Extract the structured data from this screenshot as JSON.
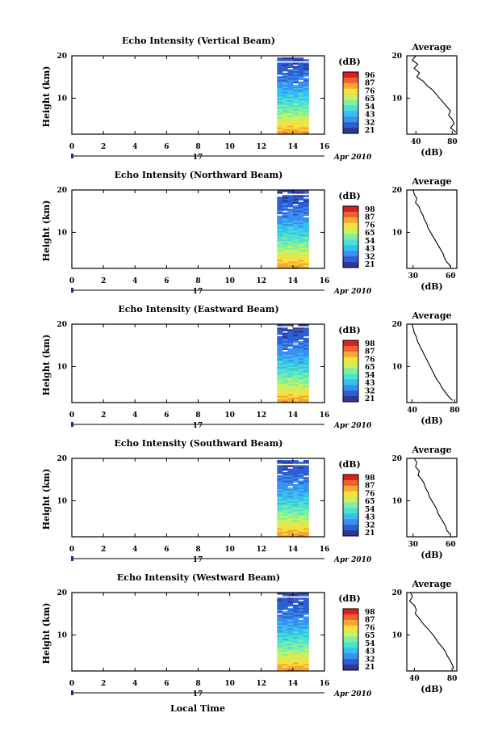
{
  "figure": {
    "xlabel_bottom": "Local Time"
  },
  "chart_data": [
    {
      "type": "heatmap",
      "title": "Echo Intensity (Vertical Beam)",
      "ylabel": "Height (km)",
      "x_ticks": [
        "0",
        "2",
        "4",
        "6",
        "8",
        "10",
        "12",
        "14",
        "16"
      ],
      "y_ticks": [
        "20",
        "10"
      ],
      "xlim": [
        0,
        16
      ],
      "ylim": [
        1.5,
        20
      ],
      "data_range_hours": [
        13,
        15
      ],
      "day_label": "17",
      "date_label": "Apr 2010",
      "colorbar_label": "(dB)",
      "colorbar_ticks": [
        "96",
        "87",
        "76",
        "65",
        "54",
        "43",
        "32",
        "21"
      ],
      "profile": {
        "title": "Average",
        "xlabel": "(dB)",
        "x_ticks": [
          "40",
          "80"
        ],
        "xlim": [
          30,
          85
        ],
        "y_ticks": [
          "20",
          "10"
        ],
        "heights": [
          20,
          19,
          18,
          17,
          16,
          15,
          14,
          13,
          12,
          11,
          10,
          9,
          8,
          7,
          6,
          5,
          4,
          3,
          2
        ],
        "values": [
          40,
          36,
          42,
          38,
          44,
          41,
          48,
          52,
          58,
          62,
          66,
          70,
          74,
          78,
          76,
          80,
          82,
          78,
          84
        ]
      }
    },
    {
      "type": "heatmap",
      "title": "Echo Intensity (Northward Beam)",
      "ylabel": "Height (km)",
      "x_ticks": [
        "0",
        "2",
        "4",
        "6",
        "8",
        "10",
        "12",
        "14",
        "16"
      ],
      "y_ticks": [
        "20",
        "10"
      ],
      "xlim": [
        0,
        16
      ],
      "ylim": [
        1.5,
        20
      ],
      "data_range_hours": [
        13,
        15
      ],
      "day_label": "17",
      "date_label": "Apr 2010",
      "colorbar_label": "(dB)",
      "colorbar_ticks": [
        "98",
        "87",
        "76",
        "65",
        "54",
        "43",
        "32",
        "21"
      ],
      "profile": {
        "title": "Average",
        "xlabel": "(dB)",
        "x_ticks": [
          "30",
          "60"
        ],
        "xlim": [
          25,
          65
        ],
        "y_ticks": [
          "20",
          "10"
        ],
        "heights": [
          20,
          19,
          18,
          17,
          16,
          15,
          14,
          13,
          12,
          11,
          10,
          9,
          8,
          7,
          6,
          5,
          4,
          3,
          2
        ],
        "values": [
          30,
          31,
          33,
          32,
          35,
          36,
          38,
          39,
          41,
          42,
          44,
          46,
          48,
          50,
          52,
          54,
          55,
          57,
          60
        ]
      }
    },
    {
      "type": "heatmap",
      "title": "Echo Intensity (Eastward Beam)",
      "ylabel": "Height (km)",
      "x_ticks": [
        "0",
        "2",
        "4",
        "6",
        "8",
        "10",
        "12",
        "14",
        "16"
      ],
      "y_ticks": [
        "20",
        "10"
      ],
      "xlim": [
        0,
        16
      ],
      "ylim": [
        1.5,
        20
      ],
      "data_range_hours": [
        13,
        15
      ],
      "day_label": "17",
      "date_label": "Apr 2010",
      "colorbar_label": "(dB)",
      "colorbar_ticks": [
        "98",
        "87",
        "76",
        "65",
        "54",
        "43",
        "32",
        "21"
      ],
      "profile": {
        "title": "Average",
        "xlabel": "(dB)",
        "x_ticks": [
          "40",
          "80"
        ],
        "xlim": [
          35,
          82
        ],
        "y_ticks": [
          "20",
          "10"
        ],
        "heights": [
          20,
          19,
          18,
          17,
          16,
          15,
          14,
          13,
          12,
          11,
          10,
          9,
          8,
          7,
          6,
          5,
          4,
          3,
          2
        ],
        "values": [
          40,
          41,
          42,
          44,
          45,
          47,
          49,
          51,
          53,
          55,
          57,
          59,
          61,
          63,
          66,
          68,
          71,
          74,
          78
        ]
      }
    },
    {
      "type": "heatmap",
      "title": "Echo Intensity (Southward Beam)",
      "ylabel": "Height (km)",
      "x_ticks": [
        "0",
        "2",
        "4",
        "6",
        "8",
        "10",
        "12",
        "14",
        "16"
      ],
      "y_ticks": [
        "20",
        "10"
      ],
      "xlim": [
        0,
        16
      ],
      "ylim": [
        1.5,
        20
      ],
      "data_range_hours": [
        13,
        15
      ],
      "day_label": "17",
      "date_label": "Apr 2010",
      "colorbar_label": "(dB)",
      "colorbar_ticks": [
        "98",
        "87",
        "76",
        "65",
        "54",
        "43",
        "32",
        "21"
      ],
      "profile": {
        "title": "Average",
        "xlabel": "(dB)",
        "x_ticks": [
          "30",
          "60"
        ],
        "xlim": [
          25,
          65
        ],
        "y_ticks": [
          "20",
          "10"
        ],
        "heights": [
          20,
          19,
          18,
          17,
          16,
          15,
          14,
          13,
          12,
          11,
          10,
          9,
          8,
          7,
          6,
          5,
          4,
          3,
          2
        ],
        "values": [
          31,
          33,
          32,
          35,
          34,
          37,
          39,
          40,
          42,
          43,
          45,
          47,
          49,
          50,
          52,
          54,
          56,
          57,
          60
        ]
      }
    },
    {
      "type": "heatmap",
      "title": "Echo Intensity (Westward Beam)",
      "ylabel": "Height (km)",
      "x_ticks": [
        "0",
        "2",
        "4",
        "6",
        "8",
        "10",
        "12",
        "14",
        "16"
      ],
      "y_ticks": [
        "20",
        "10"
      ],
      "xlim": [
        0,
        16
      ],
      "ylim": [
        1.5,
        20
      ],
      "data_range_hours": [
        13,
        15
      ],
      "day_label": "17",
      "date_label": "Apr 2010",
      "colorbar_label": "(dB)",
      "colorbar_ticks": [
        "98",
        "87",
        "76",
        "65",
        "54",
        "43",
        "32",
        "21"
      ],
      "profile": {
        "title": "Average",
        "xlabel": "(dB)",
        "x_ticks": [
          "40",
          "80"
        ],
        "xlim": [
          32,
          85
        ],
        "y_ticks": [
          "20",
          "10"
        ],
        "heights": [
          20,
          19,
          18,
          17,
          16,
          15,
          14,
          13,
          12,
          11,
          10,
          9,
          8,
          7,
          6,
          5,
          4,
          3,
          2
        ],
        "values": [
          36,
          38,
          35,
          40,
          42,
          41,
          45,
          48,
          52,
          56,
          60,
          63,
          66,
          70,
          73,
          75,
          78,
          80,
          82
        ]
      }
    }
  ]
}
